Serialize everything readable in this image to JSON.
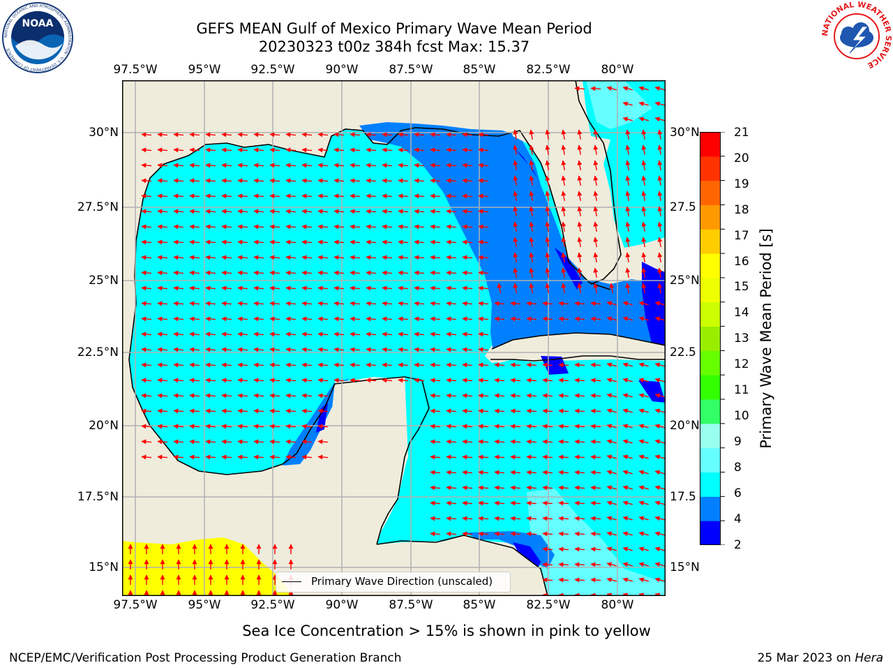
{
  "header": {
    "title_line1": "GEFS MEAN Gulf of Mexico Primary Wave Mean Period",
    "title_line2": "20230323 t00z 384h fcst   Max: 15.37"
  },
  "logos": {
    "noaa_text": "NOAA",
    "noaa_ring": "NATIONAL OCEANIC AND ATMOSPHERIC ADMINISTRATION · U.S. DEPARTMENT OF COMMERCE",
    "nws_ring": "NATIONAL WEATHER SERVICE"
  },
  "map": {
    "lon_labels": [
      "97.5°W",
      "95°W",
      "92.5°W",
      "90°W",
      "87.5°W",
      "85°W",
      "82.5°W",
      "80°W"
    ],
    "lat_labels_left": [
      "30°N",
      "27.5°N",
      "25°N",
      "22.5°N",
      "20°N",
      "17.5°N",
      "15°N"
    ],
    "lat_labels_right": [
      "30°N",
      "27.5",
      "25°N",
      "22.5",
      "20°N",
      "17.5",
      "15°N"
    ],
    "grid": true,
    "colors": {
      "land": "#efecdc",
      "ocean_cyan": "#00ffff",
      "ocean_blue": "#0080ff",
      "ocean_dark": "#0000ff",
      "ocean_light": "#66ffff",
      "yellow_region": "#ffff00",
      "arrow": "#ff0000"
    },
    "legend_label": "Primary Wave Direction (unscaled)"
  },
  "colorbar": {
    "label": "Primary Wave Mean Period [s]",
    "ticks": [
      "21",
      "20",
      "19",
      "18",
      "17",
      "16",
      "15",
      "14",
      "13",
      "12",
      "11",
      "10",
      "9",
      "8",
      "6",
      "4",
      "2"
    ],
    "colors": [
      "#0000ff",
      "#0080ff",
      "#00ffff",
      "#66ffff",
      "#99ffee",
      "#33ff66",
      "#33ff00",
      "#66ff00",
      "#99ee00",
      "#ccff00",
      "#eeff00",
      "#ffff00",
      "#ffcc00",
      "#ff9900",
      "#ff6600",
      "#ff3300",
      "#ff0000"
    ]
  },
  "footer": {
    "note": "Sea Ice Concentration > 15% is shown in pink to yellow",
    "credit": "NCEP/EMC/Verification Post Processing Product Generation Branch",
    "date_prefix": "25 Mar 2023 on ",
    "date_machine": "Hera"
  }
}
